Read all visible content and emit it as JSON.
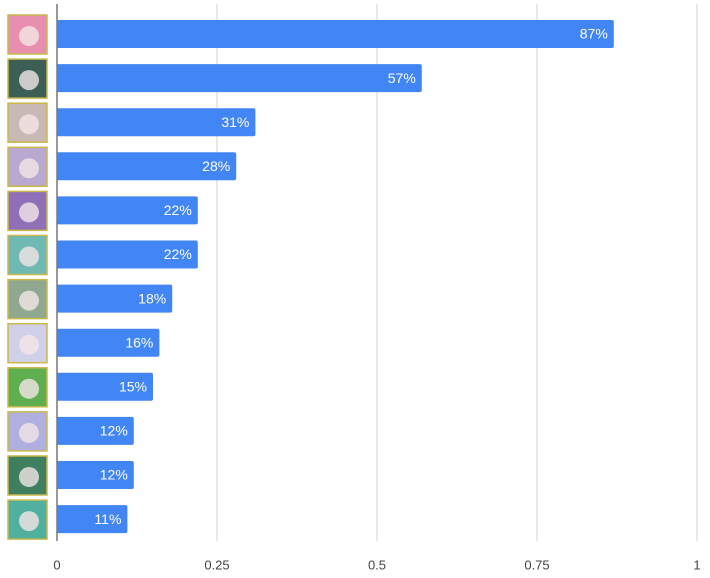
{
  "chart_data": {
    "type": "bar",
    "orientation": "horizontal",
    "categories": [
      null,
      null,
      null,
      null,
      null,
      null,
      null,
      null,
      null,
      null,
      null,
      null
    ],
    "values": [
      0.87,
      0.57,
      0.31,
      0.28,
      0.22,
      0.22,
      0.18,
      0.16,
      0.15,
      0.12,
      0.12,
      0.11
    ],
    "value_labels": [
      "87%",
      "57%",
      "31%",
      "28%",
      "22%",
      "22%",
      "18%",
      "16%",
      "15%",
      "12%",
      "12%",
      "11%"
    ],
    "color": "#4285f4",
    "xlim": [
      0,
      1
    ],
    "xticks": [
      0,
      0.25,
      0.5,
      0.75,
      1
    ],
    "grid": true
  }
}
